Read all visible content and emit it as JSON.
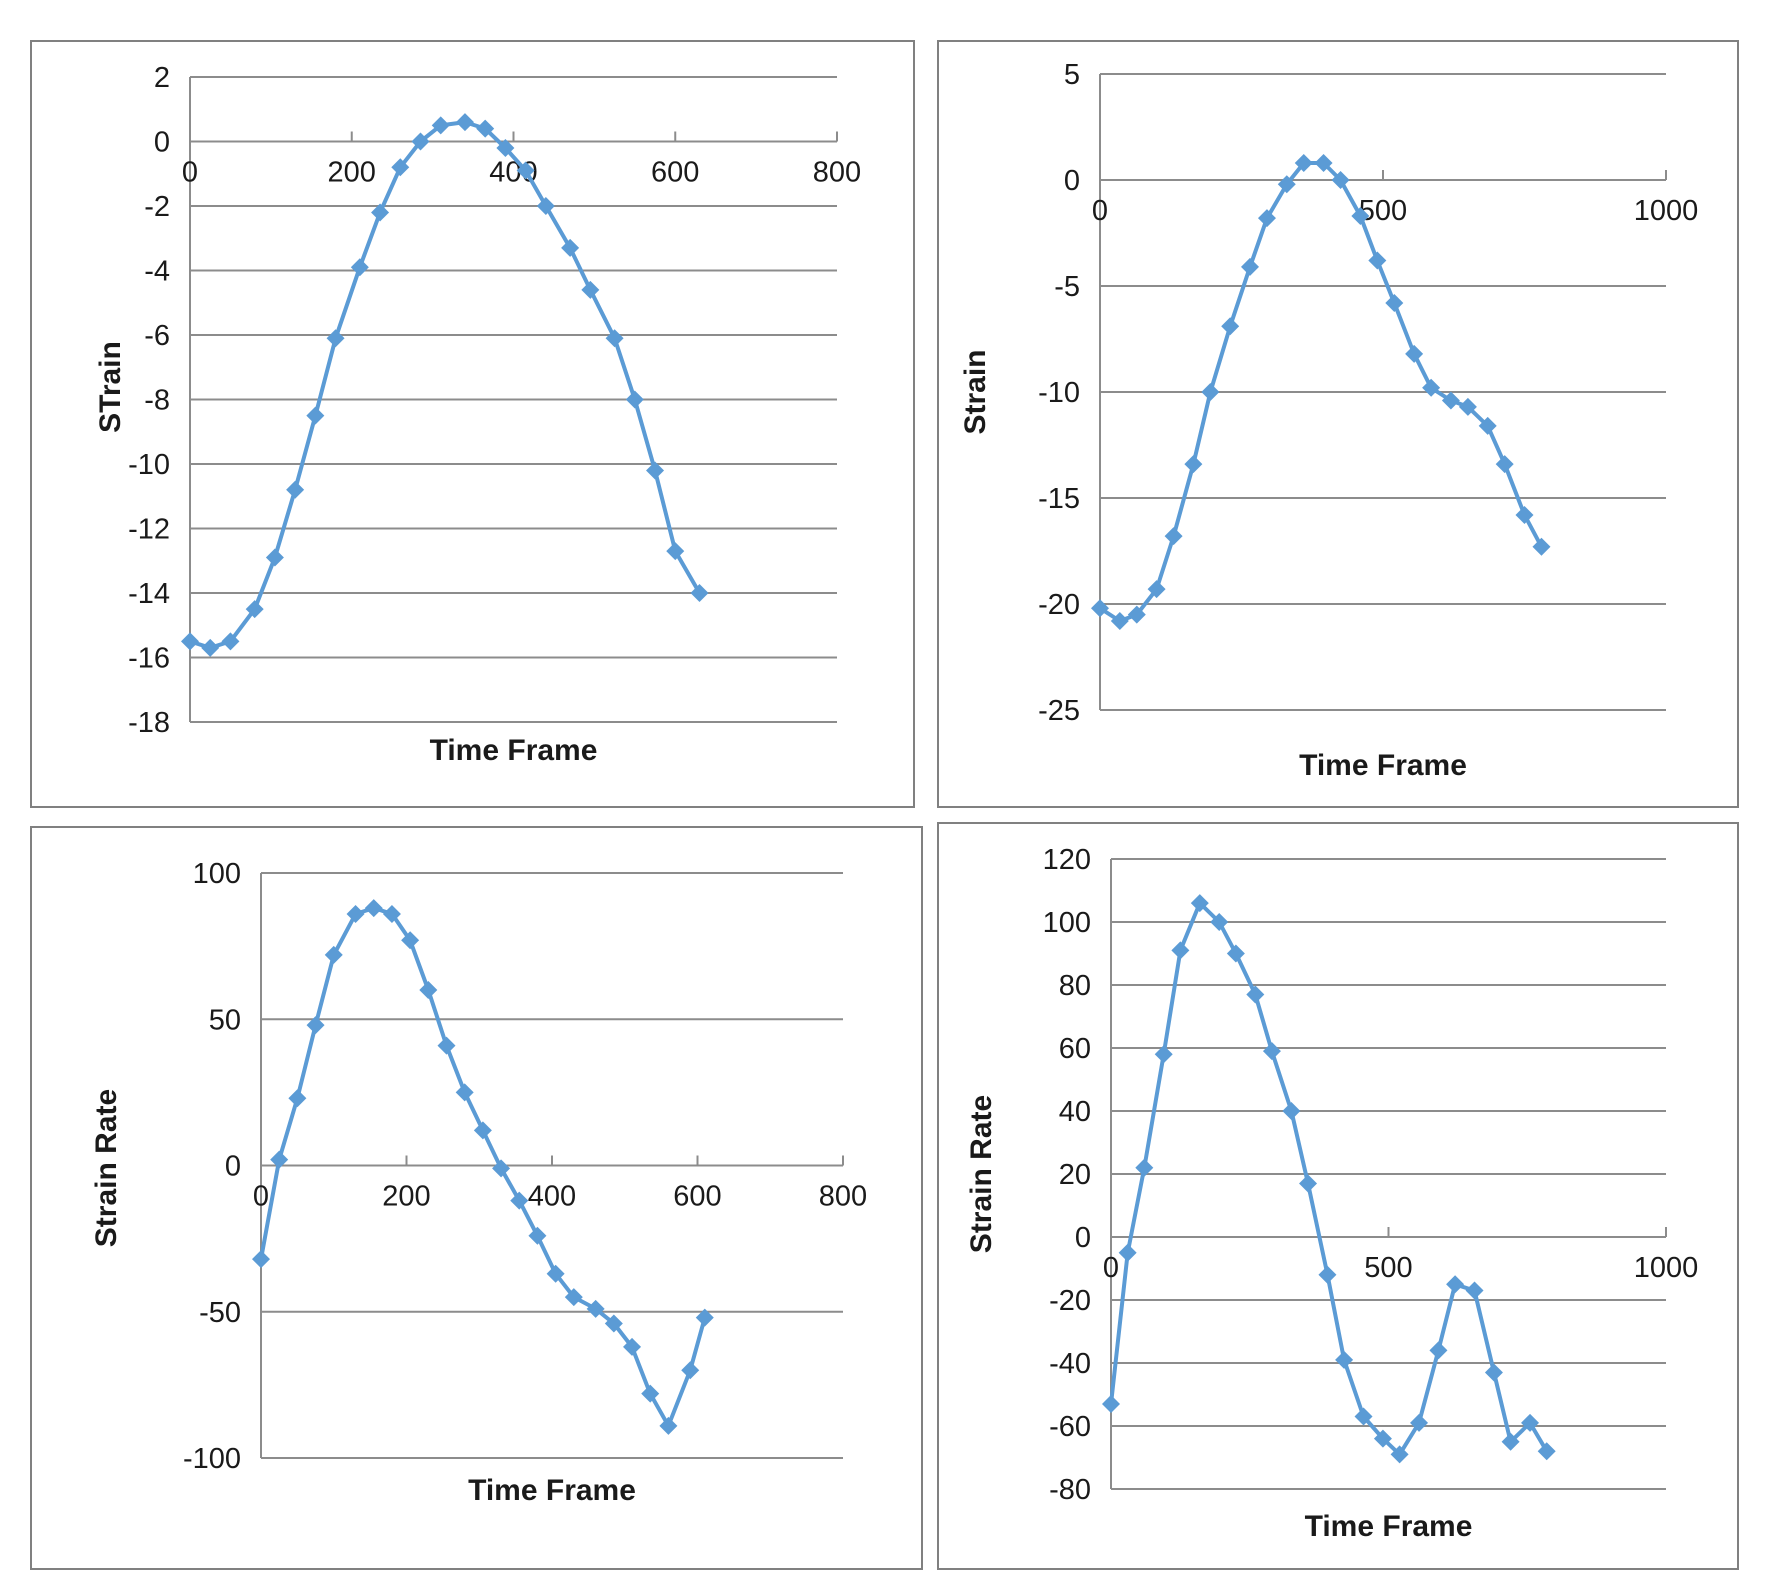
{
  "chart_data": [
    {
      "type": "line",
      "title": "",
      "xlabel": "Time Frame",
      "ylabel": "STrain",
      "xlim": [
        0,
        800
      ],
      "ylim": [
        -18,
        2
      ],
      "xticks": [
        "0",
        "200",
        "400",
        "600",
        "800"
      ],
      "yticks": [
        "2",
        "0",
        "-2",
        "-4",
        "-6",
        "-8",
        "-10",
        "-12",
        "-14",
        "-16",
        "-18"
      ],
      "grid": true,
      "color": "#5B9BD5",
      "series": [
        {
          "name": "Strain",
          "x": [
            0,
            25,
            50,
            80,
            105,
            130,
            155,
            180,
            210,
            235,
            260,
            285,
            310,
            340,
            365,
            390,
            415,
            440,
            470,
            495,
            525,
            550,
            575,
            600,
            630
          ],
          "y": [
            -15.5,
            -15.7,
            -15.5,
            -14.5,
            -12.9,
            -10.8,
            -8.5,
            -6.1,
            -3.9,
            -2.2,
            -0.8,
            0.0,
            0.5,
            0.6,
            0.4,
            -0.2,
            -0.9,
            -2.0,
            -3.3,
            -4.6,
            -6.1,
            -8.0,
            -10.2,
            -12.7,
            -14.0
          ]
        }
      ]
    },
    {
      "type": "line",
      "title": "",
      "xlabel": "Time Frame",
      "ylabel": "Strain",
      "xlim": [
        0,
        1000
      ],
      "ylim": [
        -25,
        5
      ],
      "xticks": [
        "0",
        "500",
        "1000"
      ],
      "yticks": [
        "5",
        "0",
        "-5",
        "-10",
        "-15",
        "-20",
        "-25"
      ],
      "grid": true,
      "color": "#5B9BD5",
      "series": [
        {
          "name": "Strain",
          "x": [
            0,
            35,
            65,
            100,
            130,
            165,
            195,
            230,
            265,
            295,
            330,
            360,
            395,
            425,
            460,
            490,
            520,
            555,
            585,
            620,
            650,
            685,
            715,
            750,
            780
          ],
          "y": [
            -20.2,
            -20.8,
            -20.5,
            -19.3,
            -16.8,
            -13.4,
            -10.0,
            -6.9,
            -4.1,
            -1.8,
            -0.2,
            0.8,
            0.8,
            0.0,
            -1.7,
            -3.8,
            -5.8,
            -8.2,
            -9.8,
            -10.4,
            -10.7,
            -11.6,
            -13.4,
            -15.8,
            -17.3
          ]
        }
      ]
    },
    {
      "type": "line",
      "title": "",
      "xlabel": "Time Frame",
      "ylabel": "Strain Rate",
      "xlim": [
        0,
        800
      ],
      "ylim": [
        -100,
        100
      ],
      "xticks": [
        "0",
        "200",
        "400",
        "600",
        "800"
      ],
      "yticks": [
        "100",
        "50",
        "0",
        "-50",
        "-100"
      ],
      "grid": true,
      "color": "#5B9BD5",
      "series": [
        {
          "name": "Strain Rate",
          "x": [
            0,
            25,
            50,
            75,
            100,
            130,
            155,
            180,
            205,
            230,
            255,
            280,
            305,
            330,
            355,
            380,
            405,
            430,
            460,
            485,
            510,
            535,
            560,
            590,
            610
          ],
          "y": [
            -32,
            2,
            23,
            48,
            72,
            86,
            88,
            86,
            77,
            60,
            41,
            25,
            12,
            -1,
            -12,
            -24,
            -37,
            -45,
            -49,
            -54,
            -62,
            -78,
            -89,
            -70,
            -52
          ]
        }
      ]
    },
    {
      "type": "line",
      "title": "",
      "xlabel": "Time Frame",
      "ylabel": "Strain Rate",
      "xlim": [
        0,
        1000
      ],
      "ylim": [
        -80,
        120
      ],
      "xticks": [
        "0",
        "500",
        "1000"
      ],
      "yticks": [
        "120",
        "100",
        "80",
        "60",
        "40",
        "20",
        "0",
        "-20",
        "-40",
        "-60",
        "-80"
      ],
      "grid": true,
      "color": "#5B9BD5",
      "series": [
        {
          "name": "Strain Rate",
          "x": [
            0,
            30,
            60,
            95,
            125,
            160,
            195,
            225,
            260,
            290,
            325,
            355,
            390,
            420,
            455,
            490,
            520,
            555,
            590,
            620,
            655,
            690,
            720,
            755,
            785
          ],
          "y": [
            -53,
            -5,
            22,
            58,
            91,
            106,
            100,
            90,
            77,
            59,
            40,
            17,
            -12,
            -39,
            -57,
            -64,
            -69,
            -59,
            -36,
            -15,
            -17,
            -43,
            -65,
            -59,
            -68
          ]
        }
      ]
    }
  ]
}
